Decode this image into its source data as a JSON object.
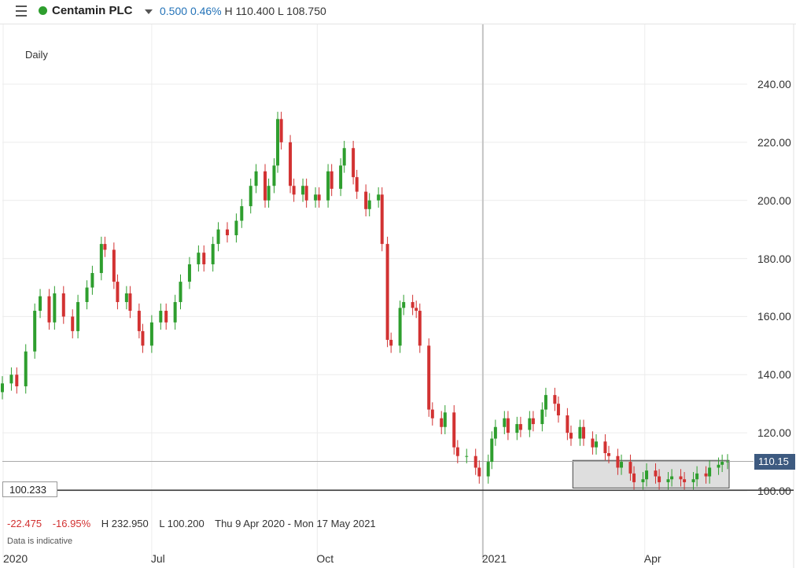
{
  "header": {
    "instrument_name": "Centamin PLC",
    "change": "0.500",
    "change_pct": "0.46%",
    "high_label": "H 110.400",
    "low_label": "L 108.750",
    "status_color": "#2e9e2e",
    "icons": [
      "menu-icon",
      "status-dot-icon",
      "caret-down-icon"
    ]
  },
  "chart_label": "Daily",
  "price_tag": "110.15",
  "low_marker": "100.233",
  "stats": {
    "change": "-22.475",
    "change_pct": "-16.95%",
    "high": "H 232.950",
    "low": "L 100.200",
    "range": "Thu 9 Apr 2020 - Mon 17 May 2021"
  },
  "disclaimer": "Data is indicative",
  "colors": {
    "up": "#2e9e2e",
    "down": "#d23232",
    "price_tag": "#3d5a80"
  },
  "chart_data": {
    "type": "candlestick",
    "x_range": [
      "2020-04-09",
      "2021-05-17"
    ],
    "y_range": [
      98,
      252
    ],
    "y_ticks": [
      "240.00",
      "220.00",
      "200.00",
      "180.00",
      "160.00",
      "140.00",
      "120.00",
      "100.00"
    ],
    "y_tick_values": [
      240,
      220,
      200,
      180,
      160,
      140,
      120,
      100
    ],
    "x_ticks": [
      {
        "label": "2020",
        "date": "2020-04-09"
      },
      {
        "label": "Jul",
        "date": "2020-07-01"
      },
      {
        "label": "Oct",
        "date": "2020-10-01"
      },
      {
        "label": "2021",
        "date": "2021-01-01"
      },
      {
        "label": "Apr",
        "date": "2021-04-01"
      }
    ],
    "current_price": 110.15,
    "low_line": 100.233,
    "highlight_box": {
      "from": "2021-02-20",
      "to": "2021-05-17",
      "low": 101,
      "high": 110.5
    },
    "series": [
      {
        "date": "2020-04-09",
        "close": 137
      },
      {
        "date": "2020-04-14",
        "close": 140
      },
      {
        "date": "2020-04-17",
        "close": 136
      },
      {
        "date": "2020-04-22",
        "close": 148
      },
      {
        "date": "2020-04-27",
        "close": 162
      },
      {
        "date": "2020-04-30",
        "close": 167
      },
      {
        "date": "2020-05-05",
        "close": 158
      },
      {
        "date": "2020-05-08",
        "close": 168
      },
      {
        "date": "2020-05-13",
        "close": 160
      },
      {
        "date": "2020-05-18",
        "close": 155
      },
      {
        "date": "2020-05-21",
        "close": 165
      },
      {
        "date": "2020-05-26",
        "close": 170
      },
      {
        "date": "2020-05-29",
        "close": 175
      },
      {
        "date": "2020-06-03",
        "close": 185
      },
      {
        "date": "2020-06-05",
        "close": 183
      },
      {
        "date": "2020-06-10",
        "close": 172
      },
      {
        "date": "2020-06-12",
        "close": 165
      },
      {
        "date": "2020-06-17",
        "close": 168
      },
      {
        "date": "2020-06-19",
        "close": 162
      },
      {
        "date": "2020-06-24",
        "close": 155
      },
      {
        "date": "2020-06-26",
        "close": 150
      },
      {
        "date": "2020-07-01",
        "close": 158
      },
      {
        "date": "2020-07-06",
        "close": 162
      },
      {
        "date": "2020-07-09",
        "close": 158
      },
      {
        "date": "2020-07-14",
        "close": 165
      },
      {
        "date": "2020-07-17",
        "close": 172
      },
      {
        "date": "2020-07-22",
        "close": 178
      },
      {
        "date": "2020-07-27",
        "close": 182
      },
      {
        "date": "2020-07-30",
        "close": 178
      },
      {
        "date": "2020-08-04",
        "close": 185
      },
      {
        "date": "2020-08-07",
        "close": 190
      },
      {
        "date": "2020-08-12",
        "close": 188
      },
      {
        "date": "2020-08-17",
        "close": 193
      },
      {
        "date": "2020-08-20",
        "close": 198
      },
      {
        "date": "2020-08-25",
        "close": 205
      },
      {
        "date": "2020-08-28",
        "close": 210
      },
      {
        "date": "2020-09-02",
        "close": 200
      },
      {
        "date": "2020-09-04",
        "close": 205
      },
      {
        "date": "2020-09-07",
        "close": 212
      },
      {
        "date": "2020-09-09",
        "close": 228
      },
      {
        "date": "2020-09-11",
        "close": 220
      },
      {
        "date": "2020-09-16",
        "close": 205
      },
      {
        "date": "2020-09-18",
        "close": 202
      },
      {
        "date": "2020-09-23",
        "close": 205
      },
      {
        "date": "2020-09-25",
        "close": 200
      },
      {
        "date": "2020-09-30",
        "close": 202
      },
      {
        "date": "2020-10-02",
        "close": 200
      },
      {
        "date": "2020-10-07",
        "close": 210
      },
      {
        "date": "2020-10-09",
        "close": 204
      },
      {
        "date": "2020-10-14",
        "close": 212
      },
      {
        "date": "2020-10-16",
        "close": 218
      },
      {
        "date": "2020-10-21",
        "close": 208
      },
      {
        "date": "2020-10-23",
        "close": 203
      },
      {
        "date": "2020-10-28",
        "close": 197
      },
      {
        "date": "2020-10-30",
        "close": 200
      },
      {
        "date": "2020-11-04",
        "close": 202
      },
      {
        "date": "2020-11-06",
        "close": 185
      },
      {
        "date": "2020-11-09",
        "close": 152
      },
      {
        "date": "2020-11-11",
        "close": 150
      },
      {
        "date": "2020-11-16",
        "close": 163
      },
      {
        "date": "2020-11-18",
        "close": 165
      },
      {
        "date": "2020-11-23",
        "close": 163
      },
      {
        "date": "2020-11-25",
        "close": 162
      },
      {
        "date": "2020-11-27",
        "close": 150
      },
      {
        "date": "2020-12-02",
        "close": 128
      },
      {
        "date": "2020-12-04",
        "close": 125
      },
      {
        "date": "2020-12-09",
        "close": 122
      },
      {
        "date": "2020-12-11",
        "close": 127
      },
      {
        "date": "2020-12-16",
        "close": 115
      },
      {
        "date": "2020-12-18",
        "close": 112
      },
      {
        "date": "2020-12-23",
        "close": 112
      },
      {
        "date": "2020-12-28",
        "close": 108
      },
      {
        "date": "2020-12-30",
        "close": 105
      },
      {
        "date": "2021-01-04",
        "close": 110
      },
      {
        "date": "2021-01-06",
        "close": 118
      },
      {
        "date": "2021-01-08",
        "close": 122
      },
      {
        "date": "2021-01-13",
        "close": 125
      },
      {
        "date": "2021-01-15",
        "close": 120
      },
      {
        "date": "2021-01-20",
        "close": 123
      },
      {
        "date": "2021-01-22",
        "close": 121
      },
      {
        "date": "2021-01-27",
        "close": 125
      },
      {
        "date": "2021-01-29",
        "close": 123
      },
      {
        "date": "2021-02-03",
        "close": 128
      },
      {
        "date": "2021-02-05",
        "close": 133
      },
      {
        "date": "2021-02-10",
        "close": 130
      },
      {
        "date": "2021-02-12",
        "close": 126
      },
      {
        "date": "2021-02-17",
        "close": 120
      },
      {
        "date": "2021-02-19",
        "close": 118
      },
      {
        "date": "2021-02-24",
        "close": 122
      },
      {
        "date": "2021-02-26",
        "close": 118
      },
      {
        "date": "2021-03-03",
        "close": 115
      },
      {
        "date": "2021-03-05",
        "close": 117
      },
      {
        "date": "2021-03-10",
        "close": 113
      },
      {
        "date": "2021-03-12",
        "close": 112
      },
      {
        "date": "2021-03-17",
        "close": 108
      },
      {
        "date": "2021-03-19",
        "close": 110
      },
      {
        "date": "2021-03-24",
        "close": 106
      },
      {
        "date": "2021-03-26",
        "close": 103
      },
      {
        "date": "2021-03-31",
        "close": 104
      },
      {
        "date": "2021-04-02",
        "close": 107
      },
      {
        "date": "2021-04-07",
        "close": 105
      },
      {
        "date": "2021-04-09",
        "close": 103
      },
      {
        "date": "2021-04-14",
        "close": 104
      },
      {
        "date": "2021-04-16",
        "close": 105
      },
      {
        "date": "2021-04-21",
        "close": 104
      },
      {
        "date": "2021-04-23",
        "close": 103
      },
      {
        "date": "2021-04-28",
        "close": 104
      },
      {
        "date": "2021-04-30",
        "close": 106
      },
      {
        "date": "2021-05-05",
        "close": 105
      },
      {
        "date": "2021-05-07",
        "close": 108
      },
      {
        "date": "2021-05-12",
        "close": 109
      },
      {
        "date": "2021-05-14",
        "close": 110
      },
      {
        "date": "2021-05-17",
        "close": 110.15
      }
    ]
  }
}
